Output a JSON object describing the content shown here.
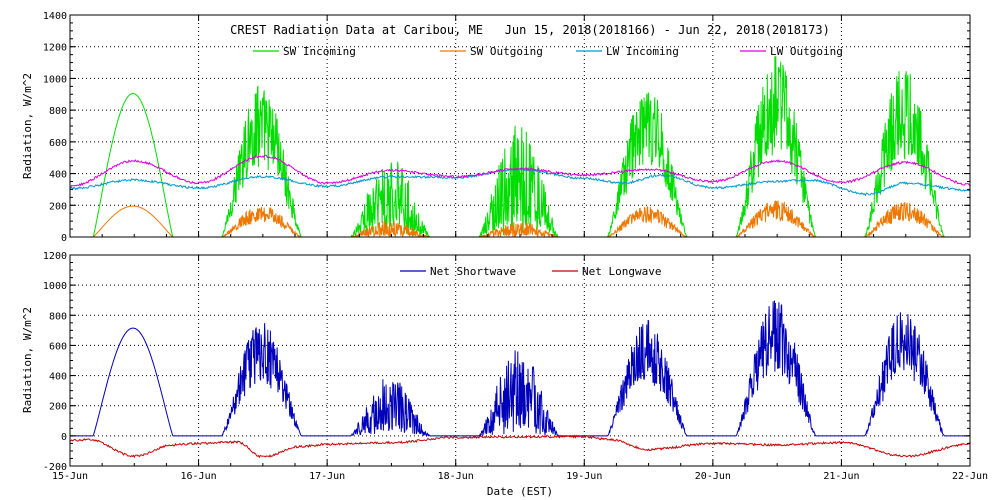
{
  "chart_data": [
    {
      "type": "line",
      "panel": "top",
      "title": "CREST Radiation Data at Caribou, ME   Jun 15, 2018(2018166) - Jun 22, 2018(2018173)",
      "xlabel": "",
      "ylabel": "Radiation, W/m^2",
      "ylim": [
        0,
        1400
      ],
      "xlim": [
        0,
        7
      ],
      "yticks": [
        "0",
        "200",
        "400",
        "600",
        "800",
        "1000",
        "1200",
        "1400"
      ],
      "xticks": [],
      "grid": true,
      "legend": "top",
      "series": [
        {
          "name": "SW Incoming",
          "color": "#00dd00",
          "peaks": [
            905,
            960,
            520,
            730,
            960,
            1140,
            1075
          ],
          "shape": [
            "clear",
            "cloudy",
            "broken",
            "broken",
            "cloudy",
            "cloudy",
            "cloudy"
          ]
        },
        {
          "name": "SW Outgoing",
          "color": "#ee7700",
          "peaks": [
            195,
            200,
            110,
            100,
            190,
            230,
            220
          ],
          "shape": [
            "clear",
            "cloudy",
            "broken",
            "broken",
            "cloudy",
            "cloudy",
            "cloudy"
          ]
        },
        {
          "name": "LW Incoming",
          "color": "#0099cc",
          "keypoints": [
            [
              0,
              305
            ],
            [
              0.5,
              360
            ],
            [
              1,
              310
            ],
            [
              1.5,
              380
            ],
            [
              2,
              320
            ],
            [
              2.5,
              380
            ],
            [
              3,
              375
            ],
            [
              3.5,
              425
            ],
            [
              4,
              370
            ],
            [
              4.3,
              340
            ],
            [
              4.6,
              390
            ],
            [
              5,
              310
            ],
            [
              5.5,
              350
            ],
            [
              5.75,
              360
            ],
            [
              6.2,
              270
            ],
            [
              6.5,
              340
            ],
            [
              7,
              295
            ]
          ]
        },
        {
          "name": "LW Outgoing",
          "color": "#dd00dd",
          "keypoints": [
            [
              0,
              320
            ],
            [
              0.5,
              480
            ],
            [
              1,
              340
            ],
            [
              1.5,
              510
            ],
            [
              2,
              340
            ],
            [
              2.5,
              420
            ],
            [
              3,
              380
            ],
            [
              3.5,
              430
            ],
            [
              4,
              390
            ],
            [
              4.5,
              425
            ],
            [
              5,
              350
            ],
            [
              5.5,
              480
            ],
            [
              6,
              345
            ],
            [
              6.5,
              470
            ],
            [
              7,
              330
            ]
          ]
        }
      ]
    },
    {
      "type": "line",
      "panel": "bottom",
      "title": "",
      "xlabel": "Date (EST)",
      "ylabel": "Radiation, W/m^2",
      "ylim": [
        -200,
        1200
      ],
      "xlim": [
        0,
        7
      ],
      "yticks": [
        "-200",
        "0",
        "200",
        "400",
        "600",
        "800",
        "1000",
        "1200"
      ],
      "xticks": [
        "15-Jun",
        "16-Jun",
        "17-Jun",
        "18-Jun",
        "19-Jun",
        "20-Jun",
        "21-Jun",
        "22-Jun"
      ],
      "grid": true,
      "legend": "top",
      "series": [
        {
          "name": "Net Shortwave",
          "color": "#0000bb",
          "peaks": [
            715,
            755,
            405,
            590,
            765,
            900,
            840
          ],
          "shape": [
            "clear",
            "cloudy",
            "broken",
            "broken",
            "cloudy",
            "cloudy",
            "cloudy"
          ]
        },
        {
          "name": "Net Longwave",
          "color": "#cc0000",
          "keypoints": [
            [
              0,
              -30
            ],
            [
              0.15,
              -25
            ],
            [
              0.5,
              -135
            ],
            [
              0.8,
              -60
            ],
            [
              1,
              -50
            ],
            [
              1.3,
              -40
            ],
            [
              1.5,
              -140
            ],
            [
              1.8,
              -70
            ],
            [
              2,
              -55
            ],
            [
              2.5,
              -45
            ],
            [
              3,
              -10
            ],
            [
              4,
              -5
            ],
            [
              4.2,
              -25
            ],
            [
              4.5,
              -90
            ],
            [
              5,
              -50
            ],
            [
              5.5,
              -60
            ],
            [
              6,
              -45
            ],
            [
              6.5,
              -135
            ],
            [
              7,
              -55
            ]
          ]
        }
      ]
    }
  ]
}
